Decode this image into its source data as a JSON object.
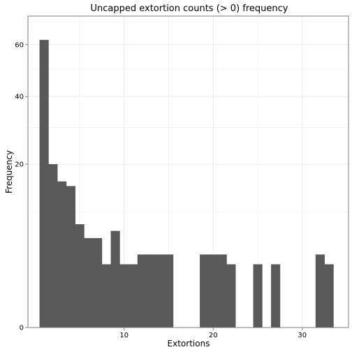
{
  "chart_data": {
    "type": "bar",
    "title": "Uncapped extortion counts (> 0) frequency",
    "xlabel": "Extortions",
    "ylabel": "Frequency",
    "x_ticks": [
      10,
      20,
      30
    ],
    "y_ticks": [
      0,
      20,
      40,
      60
    ],
    "y_scale": "sqrt",
    "xlim": [
      -0.8,
      35.2
    ],
    "ylim": [
      0,
      72.7
    ],
    "bin_width": 1,
    "grid": true,
    "bar_color": "#595959",
    "grid_color": "#ebebeb",
    "bins": [
      {
        "x": 1,
        "value": 62
      },
      {
        "x": 2,
        "value": 20
      },
      {
        "x": 3,
        "value": 16
      },
      {
        "x": 4,
        "value": 15
      },
      {
        "x": 5,
        "value": 8
      },
      {
        "x": 6,
        "value": 6
      },
      {
        "x": 7,
        "value": 6
      },
      {
        "x": 8,
        "value": 3
      },
      {
        "x": 9,
        "value": 7
      },
      {
        "x": 10,
        "value": 3
      },
      {
        "x": 11,
        "value": 3
      },
      {
        "x": 12,
        "value": 4
      },
      {
        "x": 13,
        "value": 4
      },
      {
        "x": 14,
        "value": 4
      },
      {
        "x": 15,
        "value": 4
      },
      {
        "x": 16,
        "value": 0
      },
      {
        "x": 17,
        "value": 0
      },
      {
        "x": 18,
        "value": 0
      },
      {
        "x": 19,
        "value": 4
      },
      {
        "x": 20,
        "value": 4
      },
      {
        "x": 21,
        "value": 4
      },
      {
        "x": 22,
        "value": 3
      },
      {
        "x": 23,
        "value": 0
      },
      {
        "x": 24,
        "value": 0
      },
      {
        "x": 25,
        "value": 3
      },
      {
        "x": 26,
        "value": 0
      },
      {
        "x": 27,
        "value": 3
      },
      {
        "x": 28,
        "value": 0
      },
      {
        "x": 29,
        "value": 0
      },
      {
        "x": 30,
        "value": 0
      },
      {
        "x": 31,
        "value": 0
      },
      {
        "x": 32,
        "value": 4
      },
      {
        "x": 33,
        "value": 3
      }
    ]
  }
}
